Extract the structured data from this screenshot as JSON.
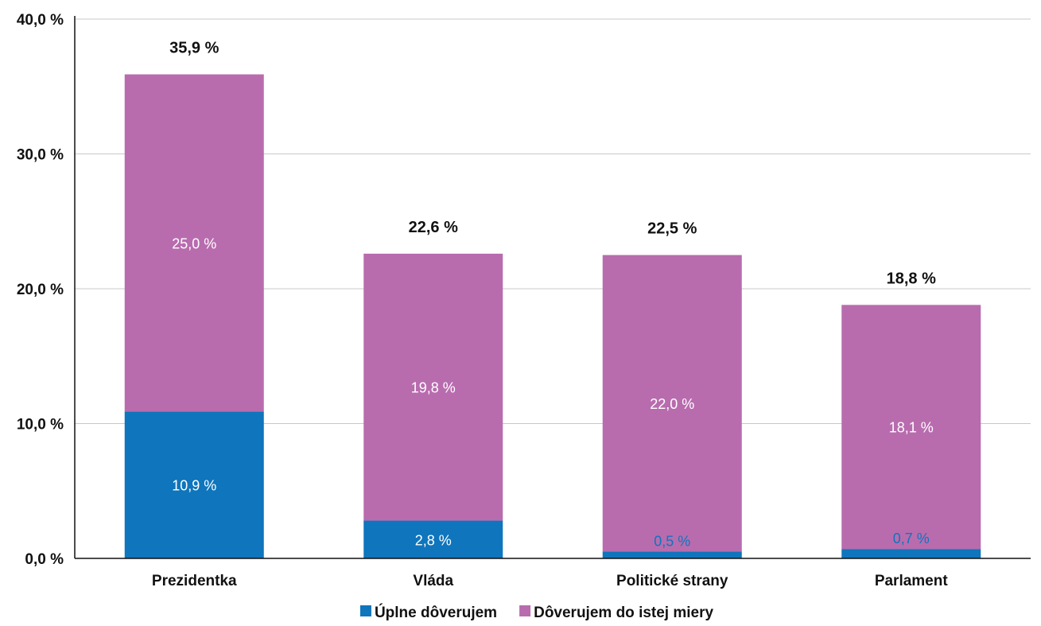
{
  "chart_data": {
    "type": "bar",
    "stacked": true,
    "categories": [
      "Prezidentka",
      "Vláda",
      "Politické strany",
      "Parlament"
    ],
    "series": [
      {
        "name": "Úplne dôverujem",
        "values": [
          10.9,
          2.8,
          0.5,
          0.7
        ],
        "labels": [
          "10,9 %",
          "2,8 %",
          "0,5 %",
          "0,7 %"
        ],
        "color": "#0f75bc"
      },
      {
        "name": "Dôverujem do istej miery",
        "values": [
          25.0,
          19.8,
          22.0,
          18.1
        ],
        "labels": [
          "25,0 %",
          "19,8 %",
          "22,0 %",
          "18,1 %"
        ],
        "color": "#b86cae"
      }
    ],
    "totals": [
      "35,9 %",
      "22,6 %",
      "22,5 %",
      "18,8 %"
    ],
    "total_values": [
      35.9,
      22.6,
      22.5,
      18.8
    ],
    "y_ticks": [
      "0,0 %",
      "10,0 %",
      "20,0 %",
      "30,0 %",
      "40,0 %"
    ],
    "y_tick_values": [
      0,
      10,
      20,
      30,
      40
    ],
    "ylim": [
      0,
      40
    ],
    "grid": true,
    "legend_position": "bottom",
    "gridline_color": "#c8c8c8",
    "axis_color": "#111111",
    "outside_label_color": "#0f75bc",
    "inside_label_color": "#ffffff"
  }
}
